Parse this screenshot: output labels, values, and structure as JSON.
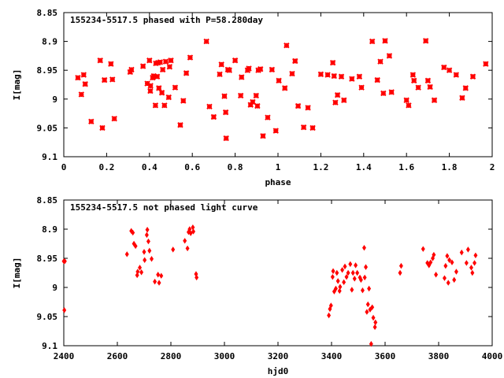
{
  "chart_data": [
    {
      "type": "scatter",
      "title": "155234-5517.5 phased with P=58.280day",
      "xlabel": "phase",
      "ylabel": "I[mag]",
      "xlim": [
        0,
        2
      ],
      "ylim": [
        8.85,
        9.1
      ],
      "y_inverted": true,
      "x_ticks": [
        "0",
        "0.2",
        "0.4",
        "0.6",
        "0.8",
        "1",
        "1.2",
        "1.4",
        "1.6",
        "1.8",
        "2"
      ],
      "y_ticks": [
        "8.85",
        "8.9",
        "8.95",
        "9",
        "9.05",
        "9.1"
      ],
      "grid": false,
      "marker": "star",
      "color": "#ff0000",
      "x": [
        0.066,
        0.082,
        0.093,
        0.1,
        0.128,
        0.17,
        0.18,
        0.19,
        0.22,
        0.227,
        0.236,
        0.31,
        0.316,
        0.37,
        0.39,
        0.4,
        0.404,
        0.405,
        0.415,
        0.42,
        0.428,
        0.43,
        0.436,
        0.44,
        0.444,
        0.45,
        0.458,
        0.462,
        0.47,
        0.476,
        0.49,
        0.494,
        0.5,
        0.52,
        0.544,
        0.558,
        0.572,
        0.59,
        0.666,
        0.68,
        0.7,
        0.728,
        0.736,
        0.75,
        0.756,
        0.758,
        0.766,
        0.773,
        0.8,
        0.826,
        0.83,
        0.858,
        0.864,
        0.872,
        0.882,
        0.898,
        0.904,
        0.908,
        0.918,
        0.93,
        0.952,
        0.972,
        0.99,
        1.004,
        1.032,
        1.04,
        1.066,
        1.08,
        1.094,
        1.12,
        1.14,
        1.162,
        1.2,
        1.232,
        1.256,
        1.262,
        1.268,
        1.278,
        1.296,
        1.308,
        1.345,
        1.38,
        1.39,
        1.44,
        1.464,
        1.478,
        1.492,
        1.5,
        1.52,
        1.53,
        1.6,
        1.61,
        1.63,
        1.635,
        1.655,
        1.69,
        1.7,
        1.71,
        1.73,
        1.775,
        1.8,
        1.832,
        1.86,
        1.876,
        1.91,
        1.97
      ],
      "y": [
        8.963,
        8.992,
        8.958,
        8.974,
        9.039,
        8.933,
        9.05,
        8.967,
        8.939,
        8.966,
        9.034,
        8.953,
        8.949,
        8.943,
        8.973,
        8.933,
        8.986,
        8.977,
        8.963,
        8.96,
        9.011,
        8.938,
        8.961,
        8.937,
        8.981,
        8.936,
        8.989,
        8.949,
        9.011,
        8.935,
        8.997,
        8.944,
        8.933,
        8.98,
        9.045,
        9.003,
        8.955,
        8.928,
        8.9,
        9.013,
        9.031,
        8.957,
        8.94,
        8.995,
        9.023,
        9.068,
        8.949,
        8.95,
        8.933,
        8.994,
        8.962,
        8.95,
        8.947,
        9.01,
        9.005,
        8.994,
        9.012,
        8.95,
        8.948,
        9.064,
        9.032,
        8.949,
        9.055,
        8.968,
        8.981,
        8.907,
        8.956,
        8.934,
        9.012,
        9.049,
        9.015,
        9.05,
        8.957,
        8.958,
        8.937,
        8.96,
        9.006,
        8.993,
        8.961,
        9.002,
        8.965,
        8.961,
        8.98,
        8.9,
        8.967,
        8.935,
        8.99,
        8.899,
        8.925,
        8.988,
        9.002,
        9.011,
        8.958,
        8.968,
        8.98,
        8.899,
        8.968,
        8.979,
        9.002,
        8.945,
        8.95,
        8.958,
        8.998,
        8.981,
        8.961,
        8.939
      ],
      "x_aux": "lower-panel series uses separate data below"
    },
    {
      "type": "scatter",
      "title": "155234-5517.5 not phased light curve",
      "xlabel": "hjd0",
      "ylabel": "I[mag]",
      "xlim": [
        2400,
        4000
      ],
      "ylim": [
        8.85,
        9.1
      ],
      "y_inverted": true,
      "x_ticks": [
        "2400",
        "2600",
        "2800",
        "3000",
        "3200",
        "3400",
        "3600",
        "3800",
        "4000"
      ],
      "y_ticks": [
        "8.85",
        "8.9",
        "8.95",
        "9",
        "9.05",
        "9.1"
      ],
      "grid": false,
      "marker": "diamond",
      "color": "#ff0000",
      "x": [
        2400,
        2402,
        2404,
        2636,
        2652,
        2658,
        2662,
        2668,
        2674,
        2676,
        2684,
        2690,
        2700,
        2702,
        2710,
        2712,
        2716,
        2720,
        2728,
        2740,
        2752,
        2756,
        2764,
        2808,
        2852,
        2862,
        2866,
        2870,
        2874,
        2882,
        2884,
        2894,
        2896,
        3390,
        3394,
        3398,
        3404,
        3406,
        3410,
        3416,
        3420,
        3424,
        3430,
        3432,
        3440,
        3446,
        3450,
        3456,
        3462,
        3470,
        3476,
        3480,
        3486,
        3490,
        3496,
        3506,
        3510,
        3516,
        3522,
        3524,
        3528,
        3532,
        3536,
        3540,
        3544,
        3548,
        3552,
        3556,
        3562,
        3564,
        3656,
        3660,
        3742,
        3758,
        3764,
        3770,
        3778,
        3782,
        3790,
        3822,
        3826,
        3832,
        3836,
        3840,
        3850,
        3858,
        3866,
        3886,
        3904,
        3910,
        3922,
        3926,
        3934,
        3938
      ],
      "y": [
        8.955,
        9.039,
        8.955,
        8.943,
        8.903,
        8.906,
        8.925,
        8.929,
        8.979,
        8.973,
        8.966,
        8.974,
        8.939,
        8.953,
        8.91,
        8.901,
        8.921,
        8.937,
        8.951,
        8.99,
        8.978,
        8.992,
        8.98,
        8.935,
        8.92,
        8.933,
        8.905,
        8.9,
        8.907,
        8.897,
        8.904,
        8.977,
        8.983,
        9.048,
        9.037,
        9.031,
        8.982,
        8.972,
        9.007,
        9.002,
        8.975,
        8.989,
        9.006,
        8.999,
        8.97,
        8.991,
        8.964,
        8.982,
        8.975,
        8.96,
        9.004,
        8.975,
        8.985,
        8.962,
        8.975,
        8.983,
        8.987,
        9.005,
        8.932,
        8.983,
        8.965,
        9.042,
        9.029,
        9.002,
        9.038,
        9.097,
        9.034,
        9.052,
        9.068,
        9.06,
        8.975,
        8.963,
        8.934,
        8.958,
        8.962,
        8.957,
        8.95,
        8.944,
        8.978,
        8.984,
        8.963,
        8.946,
        8.992,
        8.953,
        8.957,
        8.987,
        8.973,
        8.94,
        8.958,
        8.935,
        8.966,
        8.975,
        8.958,
        8.945
      ]
    }
  ]
}
